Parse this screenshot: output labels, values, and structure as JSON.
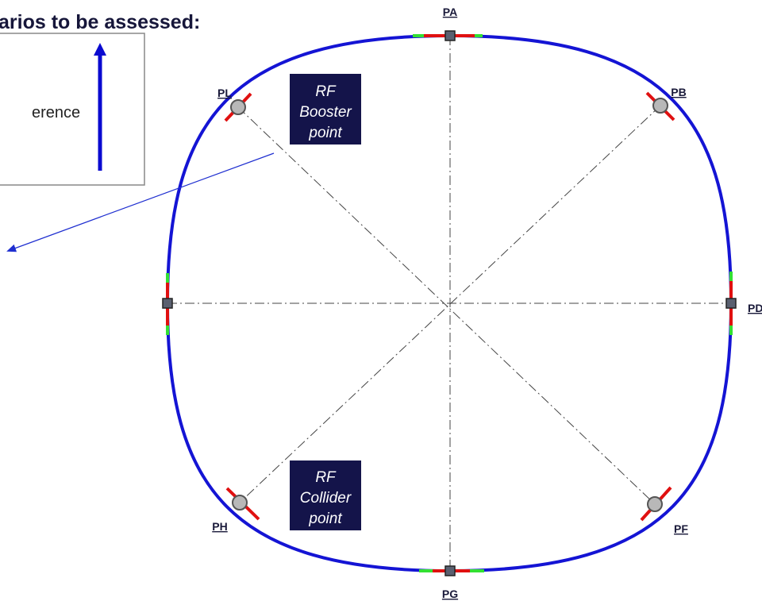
{
  "title": "arios to be assessed:",
  "legend": {
    "text": "erence"
  },
  "points": {
    "PA": "PA",
    "PB": "PB",
    "PD": "PD",
    "PF": "PF",
    "PG": "PG",
    "PH": "PH",
    "PL": "PL"
  },
  "boxes": [
    {
      "lines": [
        "RF",
        "Booster",
        "point"
      ]
    },
    {
      "lines": [
        "RF",
        "Collider",
        "point"
      ]
    }
  ]
}
